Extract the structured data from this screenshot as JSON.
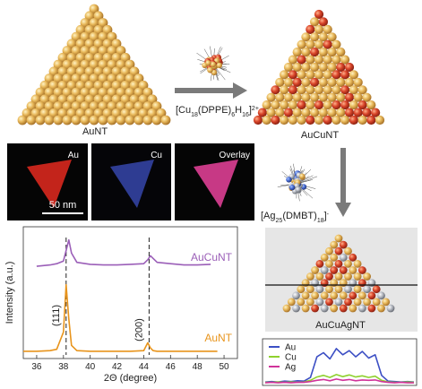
{
  "schemes": {
    "aunt_label": "AuNT",
    "aucunt_label": "AuCuNT",
    "aucuagnt_label": "AuCuAgNT",
    "cu_reagent": [
      {
        "text": "[Cu"
      },
      {
        "sub": "18"
      },
      {
        "text": "(DPPE)"
      },
      {
        "sub": "6"
      },
      {
        "text": "H"
      },
      {
        "sub": "16"
      },
      {
        "text": "]"
      },
      {
        "sup": "2+"
      }
    ],
    "ag_reagent": [
      {
        "text": "[Ag"
      },
      {
        "sub": "25"
      },
      {
        "text": "(DMBT)"
      },
      {
        "sub": "18"
      },
      {
        "text": "]"
      },
      {
        "sup": "-"
      }
    ]
  },
  "eds_maps": {
    "panels": [
      "Au",
      "Cu",
      "Overlay"
    ],
    "scale_bar": "50 nm"
  },
  "chart_data": [
    {
      "type": "line",
      "xlabel": "2Θ (degree)",
      "ylabel": "Intensity (a.u.)",
      "x": [
        35,
        36,
        37,
        37.5,
        38,
        38.2,
        38.4,
        38.6,
        39,
        40,
        41,
        42,
        43,
        44,
        44.3,
        44.5,
        44.7,
        45,
        46,
        47,
        48,
        49,
        49.5
      ],
      "series": [
        {
          "name": "AuCuNT",
          "color": "#9b5fb8",
          "values": [
            null,
            7.0,
            7.1,
            7.2,
            7.4,
            8.2,
            9.0,
            8.0,
            7.3,
            7.15,
            7.1,
            7.1,
            7.15,
            7.2,
            7.5,
            7.8,
            7.6,
            7.3,
            7.2,
            7.1,
            7.1,
            7.15,
            null
          ]
        },
        {
          "name": "AuNT",
          "color": "#e8941c",
          "values": [
            0.55,
            0.55,
            0.6,
            0.7,
            2.0,
            5.6,
            3.0,
            1.0,
            0.6,
            0.55,
            0.55,
            0.55,
            0.55,
            0.6,
            1.2,
            0.8,
            0.6,
            0.55,
            0.55,
            0.55,
            0.55,
            0.55,
            0.55
          ]
        }
      ],
      "reference_lines": [
        38.2,
        44.4
      ],
      "annotations": [
        "(111)",
        "(200)"
      ],
      "xlim": [
        35,
        51
      ],
      "xticks": [
        36,
        38,
        40,
        42,
        44,
        46,
        48,
        50
      ],
      "ylim": [
        0,
        10
      ]
    },
    {
      "type": "line",
      "categories": [
        null,
        null,
        null,
        null,
        null,
        null,
        null,
        null,
        null,
        null,
        null,
        null,
        null,
        null,
        null,
        null,
        null,
        null,
        null,
        null,
        null,
        null,
        null,
        null
      ],
      "series": [
        {
          "name": "Au",
          "color": "#3c4fc4",
          "values": [
            0.4,
            0.5,
            0.4,
            0.6,
            0.5,
            0.7,
            0.6,
            1.5,
            6.5,
            7.5,
            6.0,
            8.5,
            7.0,
            8.0,
            6.5,
            7.8,
            6.2,
            7.0,
            2.0,
            0.6,
            0.5,
            0.4,
            0.5,
            0.4
          ]
        },
        {
          "name": "Cu",
          "color": "#8fd12e",
          "values": [
            0.3,
            0.3,
            0.4,
            0.3,
            0.4,
            0.3,
            0.4,
            0.8,
            1.6,
            2.0,
            1.5,
            2.2,
            1.7,
            2.1,
            1.6,
            1.9,
            1.5,
            1.8,
            0.8,
            0.4,
            0.3,
            0.3,
            0.4,
            0.3
          ]
        },
        {
          "name": "Ag",
          "color": "#d0339a",
          "values": [
            0.2,
            0.3,
            0.2,
            0.3,
            0.2,
            0.3,
            0.3,
            0.5,
            0.8,
            1.0,
            0.7,
            1.1,
            0.8,
            1.0,
            0.7,
            0.9,
            0.8,
            0.9,
            0.5,
            0.3,
            0.2,
            0.3,
            0.2,
            0.2
          ]
        }
      ],
      "ylim": [
        0,
        10
      ]
    }
  ]
}
